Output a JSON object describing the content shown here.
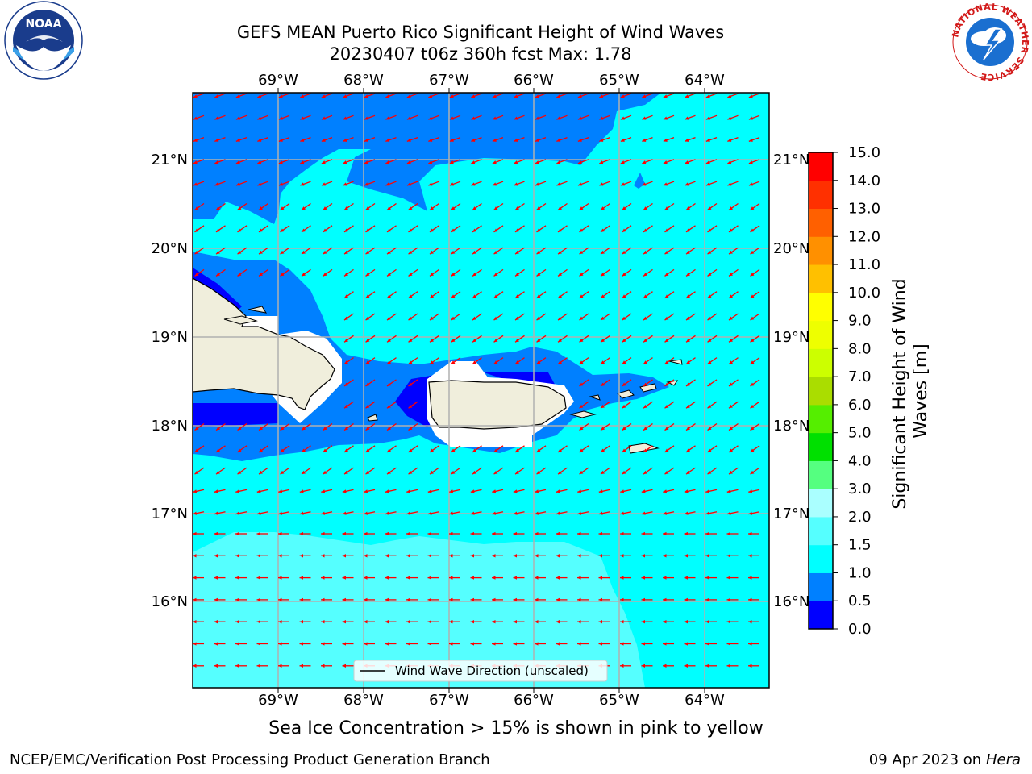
{
  "header": {
    "title_line1": "GEFS MEAN Puerto Rico Significant Height of Wind Waves",
    "title_line2": "20230407 t06z 360h fcst   Max: 1.78"
  },
  "logos": {
    "noaa_text": "NOAA",
    "nws_ring_text": "NATIONAL WEATHER SERVICE"
  },
  "map": {
    "lon_labels": [
      "69°W",
      "68°W",
      "67°W",
      "66°W",
      "65°W",
      "64°W"
    ],
    "lat_labels": [
      "21°N",
      "20°N",
      "19°N",
      "18°N",
      "17°N",
      "16°N"
    ],
    "legend_label": "Wind Wave Direction (unscaled)",
    "arrow_color": "#ff0000",
    "land_color": "#f0eedc"
  },
  "colorbar": {
    "label": "Significant Height of Wind Waves [m]",
    "ticks": [
      "0.0",
      "0.5",
      "1.0",
      "1.5",
      "2.0",
      "3.0",
      "4.0",
      "5.0",
      "6.0",
      "7.0",
      "8.0",
      "9.0",
      "10.0",
      "11.0",
      "12.0",
      "13.0",
      "14.0",
      "15.0"
    ],
    "colors": [
      "#0000ff",
      "#0080ff",
      "#00ffff",
      "#55ffff",
      "#aaffff",
      "#55ff80",
      "#00e000",
      "#55ee00",
      "#aadd00",
      "#ccff00",
      "#eeff00",
      "#ffff00",
      "#ffc000",
      "#ff9000",
      "#ff6000",
      "#ff3000",
      "#ff0000"
    ]
  },
  "note": "Sea Ice Concentration > 15% is shown in pink to yellow",
  "footer": {
    "left": "NCEP/EMC/Verification Post Processing Product Generation Branch",
    "date": "09 Apr 2023 on",
    "host": "Hera"
  }
}
